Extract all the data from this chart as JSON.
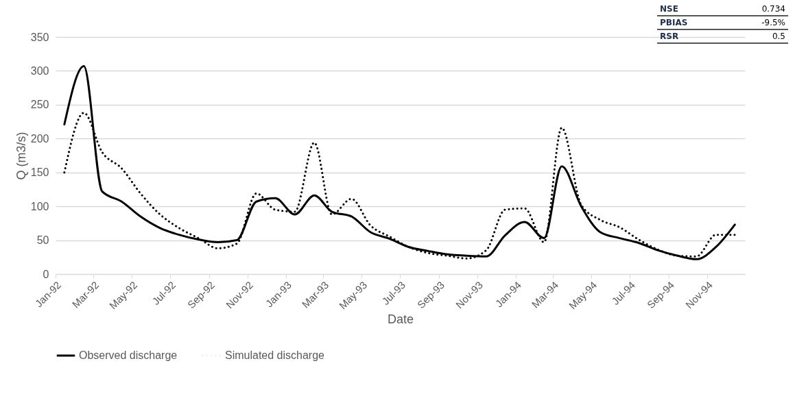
{
  "chart_data": {
    "type": "line",
    "xlabel": "Date",
    "ylabel": "Q (m3/s)",
    "x": [
      "1992-01-15",
      "1992-02-15",
      "1992-03-15",
      "1992-04-15",
      "1992-05-15",
      "1992-06-15",
      "1992-07-15",
      "1992-08-15",
      "1992-09-15",
      "1992-10-15",
      "1992-11-15",
      "1992-12-15",
      "1993-01-15",
      "1993-02-15",
      "1993-03-15",
      "1993-04-15",
      "1993-05-15",
      "1993-06-15",
      "1993-07-15",
      "1993-08-15",
      "1993-09-15",
      "1993-10-15",
      "1993-11-15",
      "1993-12-15",
      "1994-01-15",
      "1994-02-15",
      "1994-03-15",
      "1994-04-15",
      "1994-05-15",
      "1994-06-15",
      "1994-07-15",
      "1994-08-15",
      "1994-09-15",
      "1994-10-15",
      "1994-11-15",
      "1994-12-15"
    ],
    "series": [
      {
        "name": "Observed discharge",
        "color": "#000000",
        "line_style": "solid",
        "values": [
          221,
          307,
          122,
          107,
          85,
          68,
          58,
          51,
          47,
          50,
          107,
          112,
          88,
          116,
          92,
          85,
          62,
          52,
          40,
          34,
          29,
          27,
          26,
          57,
          77,
          53,
          159,
          100,
          62,
          53,
          46,
          35,
          27,
          22,
          40,
          73
        ]
      },
      {
        "name": "Simulated discharge",
        "color": "#000000",
        "line_style": "dotted",
        "values": [
          150,
          238,
          180,
          156,
          119,
          88,
          68,
          53,
          38,
          45,
          119,
          95,
          92,
          194,
          88,
          111,
          72,
          55,
          40,
          31,
          27,
          23,
          35,
          95,
          97,
          47,
          216,
          102,
          80,
          69,
          51,
          36,
          27,
          26,
          58,
          58
        ]
      }
    ],
    "xlim": [
      "1992-01-01",
      "1994-12-31"
    ],
    "xticks": [
      {
        "value": "1992-01-01",
        "label": "Jan-92"
      },
      {
        "value": "1992-03-01",
        "label": "Mar-92"
      },
      {
        "value": "1992-05-01",
        "label": "May-92"
      },
      {
        "value": "1992-07-01",
        "label": "Jul-92"
      },
      {
        "value": "1992-09-01",
        "label": "Sep-92"
      },
      {
        "value": "1992-11-01",
        "label": "Nov-92"
      },
      {
        "value": "1993-01-01",
        "label": "Jan-93"
      },
      {
        "value": "1993-03-01",
        "label": "Mar-93"
      },
      {
        "value": "1993-05-01",
        "label": "May-93"
      },
      {
        "value": "1993-07-01",
        "label": "Jul-93"
      },
      {
        "value": "1993-09-01",
        "label": "Sep-93"
      },
      {
        "value": "1993-11-01",
        "label": "Nov-93"
      },
      {
        "value": "1994-01-01",
        "label": "Jan-94"
      },
      {
        "value": "1994-03-01",
        "label": "Mar-94"
      },
      {
        "value": "1994-05-01",
        "label": "May-94"
      },
      {
        "value": "1994-07-01",
        "label": "Jul-94"
      },
      {
        "value": "1994-09-01",
        "label": "Sep-94"
      },
      {
        "value": "1994-11-01",
        "label": "Nov-94"
      }
    ],
    "ylim": [
      0,
      350
    ],
    "yticks": [
      0,
      50,
      100,
      150,
      200,
      250,
      300,
      350
    ],
    "grid": "y",
    "legend": "bottom",
    "marker": "none",
    "annotations": [
      "NSE",
      "0.734",
      "PBIAS",
      "-9.5%",
      "RSR",
      "0.5"
    ]
  }
}
